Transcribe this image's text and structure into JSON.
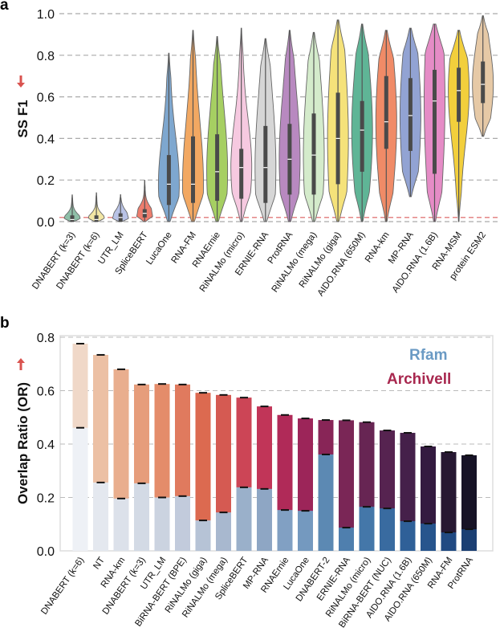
{
  "colors": {
    "arrow": "#d9534f",
    "grid": "#aaaaaa",
    "baseline": "#e07a7a",
    "box": "#444444",
    "rfam_legend": "#6a9ac4",
    "archivell_legend": "#a8284f"
  },
  "chart_data": [
    {
      "panel": "a",
      "type": "violin",
      "title": "",
      "ylabel": "SS F1",
      "ylabel_arrow": "up",
      "ylim": [
        0.0,
        1.0
      ],
      "yticks": [
        "0.0",
        "0.2",
        "0.4",
        "0.6",
        "0.8",
        "1.0"
      ],
      "grid": "horizontal-dashed",
      "reference_line": 0.02,
      "categories": [
        "DNABERT (k=3)",
        "DNABERT (k=6)",
        "UTR_LM",
        "SpliceBERT",
        "LucaOne",
        "RNA-FM",
        "RNAErnie",
        "RiNALMo (micro)",
        "ERNIE-RNA",
        "ProtRNA",
        "RiNALMo (mega)",
        "RiNALMo (giga)",
        "AIDO.RNA (650M)",
        "RNA-km",
        "MP-RNA",
        "AIDO.RNA (1.6B)",
        "RNA-MSM",
        "protein ESM2"
      ],
      "series": [
        {
          "name": "DNABERT (k=3)",
          "color": "#8fbfa8",
          "min": 0.0,
          "q1": 0.0,
          "median": 0.01,
          "q3": 0.03,
          "max": 0.13
        },
        {
          "name": "DNABERT (k=6)",
          "color": "#f2e6a4",
          "min": 0.0,
          "q1": 0.0,
          "median": 0.01,
          "q3": 0.03,
          "max": 0.14
        },
        {
          "name": "UTR_LM",
          "color": "#b9c3e6",
          "min": 0.0,
          "q1": 0.0,
          "median": 0.02,
          "q3": 0.04,
          "max": 0.13
        },
        {
          "name": "SpliceBERT",
          "color": "#ee7d6d",
          "min": 0.0,
          "q1": 0.02,
          "median": 0.04,
          "q3": 0.06,
          "max": 0.2
        },
        {
          "name": "LucaOne",
          "color": "#7ea7cf",
          "min": 0.0,
          "q1": 0.08,
          "median": 0.18,
          "q3": 0.32,
          "max": 0.81
        },
        {
          "name": "RNA-FM",
          "color": "#f2a862",
          "min": 0.0,
          "q1": 0.09,
          "median": 0.18,
          "q3": 0.41,
          "max": 0.92
        },
        {
          "name": "RNAErnie",
          "color": "#a6cf62",
          "min": 0.0,
          "q1": 0.1,
          "median": 0.24,
          "q3": 0.42,
          "max": 0.89
        },
        {
          "name": "RiNALMo (micro)",
          "color": "#f6c9e0",
          "min": 0.0,
          "q1": 0.11,
          "median": 0.26,
          "q3": 0.35,
          "max": 0.93
        },
        {
          "name": "ERNIE-RNA",
          "color": "#d6d6d6",
          "min": 0.0,
          "q1": 0.09,
          "median": 0.26,
          "q3": 0.46,
          "max": 0.88
        },
        {
          "name": "ProtRNA",
          "color": "#b889c0",
          "min": 0.0,
          "q1": 0.13,
          "median": 0.3,
          "q3": 0.47,
          "max": 0.92
        },
        {
          "name": "RiNALMo (mega)",
          "color": "#d4ebcb",
          "min": 0.0,
          "q1": 0.13,
          "median": 0.32,
          "q3": 0.52,
          "max": 0.91
        },
        {
          "name": "RiNALMo (giga)",
          "color": "#f5e27a",
          "min": 0.0,
          "q1": 0.18,
          "median": 0.4,
          "q3": 0.62,
          "max": 0.97
        },
        {
          "name": "AIDO.RNA (650M)",
          "color": "#5fb596",
          "min": 0.0,
          "q1": 0.24,
          "median": 0.44,
          "q3": 0.58,
          "max": 0.95
        },
        {
          "name": "RNA-km",
          "color": "#f08b67",
          "min": 0.0,
          "q1": 0.35,
          "median": 0.48,
          "q3": 0.7,
          "max": 0.92
        },
        {
          "name": "MP-RNA",
          "color": "#92a3d3",
          "min": 0.12,
          "q1": 0.34,
          "median": 0.51,
          "q3": 0.69,
          "max": 0.93
        },
        {
          "name": "AIDO.RNA (1.6B)",
          "color": "#e58cc6",
          "min": 0.0,
          "q1": 0.23,
          "median": 0.58,
          "q3": 0.73,
          "max": 0.95
        },
        {
          "name": "RNA-MSM",
          "color": "#f2cf3c",
          "min": 0.0,
          "q1": 0.48,
          "median": 0.63,
          "q3": 0.74,
          "max": 0.92
        },
        {
          "name": "protein ESM2",
          "color": "#e6c9a6",
          "min": 0.41,
          "q1": 0.57,
          "median": 0.66,
          "q3": 0.77,
          "max": 0.99
        }
      ]
    },
    {
      "panel": "b",
      "type": "bar",
      "stacked": "overlay",
      "title": "",
      "ylabel": "Overlap Ratio (OR)",
      "ylabel_arrow": "down",
      "ylim": [
        0.0,
        0.8
      ],
      "yticks": [
        "0.0",
        "0.2",
        "0.4",
        "0.6",
        "0.8"
      ],
      "grid": "horizontal-dashed",
      "legend": {
        "placement": "top-right",
        "entries": [
          "Rfam",
          "Archivell"
        ]
      },
      "categories": [
        "DNABERT (k=6)",
        "NT",
        "RNA-km",
        "DNABERT (k=3)",
        "UTR_LM",
        "BiRNA-BERT (BPE)",
        "RiNALMo (giga)",
        "RiNALMo (mega)",
        "SpliceBERT",
        "MP-RNA",
        "RNAErnie",
        "LucaOne",
        "DNABERT-2",
        "ERNIE-RNA",
        "RiNALMo (micro)",
        "BiRNA-BERT (NUC)",
        "AIDO.RNA (1.6B)",
        "AIDO.RNA (650M)",
        "RNA-FM",
        "ProtRNA"
      ],
      "series": [
        {
          "name": "Archivell",
          "values": [
            0.776,
            0.734,
            0.68,
            0.623,
            0.625,
            0.623,
            0.592,
            0.584,
            0.574,
            0.541,
            0.509,
            0.496,
            0.49,
            0.489,
            0.482,
            0.451,
            0.442,
            0.391,
            0.37,
            0.358
          ],
          "colors": [
            "#f0d8c8",
            "#ecc0a4",
            "#e9ae8e",
            "#e69d7b",
            "#e48c6a",
            "#e07a5e",
            "#dc6a50",
            "#d55a52",
            "#cc4556",
            "#c13558",
            "#b02a58",
            "#9c2559",
            "#882557",
            "#7a2656",
            "#672553",
            "#562350",
            "#45204a",
            "#341b40",
            "#271832",
            "#171326"
          ]
        },
        {
          "name": "Rfam",
          "values": [
            0.461,
            0.256,
            0.196,
            0.253,
            0.2,
            0.205,
            0.114,
            0.144,
            0.238,
            0.232,
            0.153,
            0.15,
            0.361,
            0.087,
            0.165,
            0.159,
            0.111,
            0.102,
            0.069,
            0.081
          ],
          "colors": [
            "#eef1f6",
            "#e4e8ef",
            "#dce1ea",
            "#d3dae5",
            "#cbd3e0",
            "#c2cbdc",
            "#b6c3d6",
            "#a8b8cf",
            "#9ab0ca",
            "#8ea6c4",
            "#81a0c3",
            "#7499bf",
            "#5c89b3",
            "#4f7fae",
            "#4477a9",
            "#396ba0",
            "#2f6098",
            "#27558d",
            "#214a82",
            "#1b3f73"
          ]
        }
      ]
    }
  ]
}
